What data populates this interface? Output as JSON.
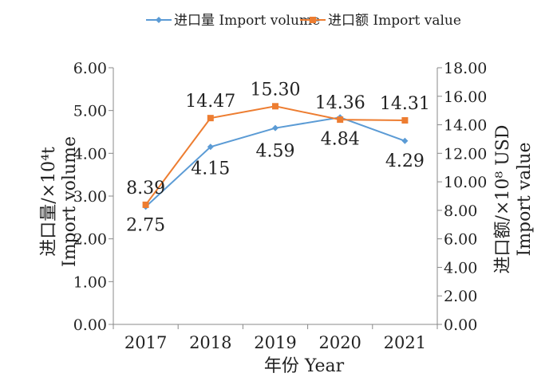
{
  "chart_data": {
    "type": "line",
    "categories": [
      "2017",
      "2018",
      "2019",
      "2020",
      "2021"
    ],
    "xlabel": "年份  Year",
    "ylabel_left": {
      "line1": "进口量/×10⁴t",
      "line2": "Import  volume"
    },
    "ylabel_right": {
      "line1": "进口额/×10⁸ USD",
      "line2": "Import  value"
    },
    "ylim_left": [
      0,
      6
    ],
    "yticks_left": [
      "0.00",
      "1.00",
      "2.00",
      "3.00",
      "4.00",
      "5.00",
      "6.00"
    ],
    "ylim_right": [
      0,
      18
    ],
    "yticks_right": [
      "0.00",
      "2.00",
      "4.00",
      "6.00",
      "8.00",
      "10.00",
      "12.00",
      "14.00",
      "16.00",
      "18.00"
    ],
    "grid": false,
    "legend_position": "top-center",
    "series": [
      {
        "name": "进口量 Import volume",
        "axis": "left",
        "color": "#5b9bd5",
        "marker": "diamond",
        "values": [
          2.75,
          4.15,
          4.59,
          4.84,
          4.29
        ],
        "labels": [
          "2.75",
          "4.15",
          "4.59",
          "4.84",
          "4.29"
        ]
      },
      {
        "name": "进口额 Import value",
        "axis": "right",
        "color": "#ed7d31",
        "marker": "square",
        "values": [
          8.39,
          14.47,
          15.3,
          14.36,
          14.31
        ],
        "labels": [
          "8.39",
          "14.47",
          "15.30",
          "14.36",
          "14.31"
        ]
      }
    ]
  }
}
